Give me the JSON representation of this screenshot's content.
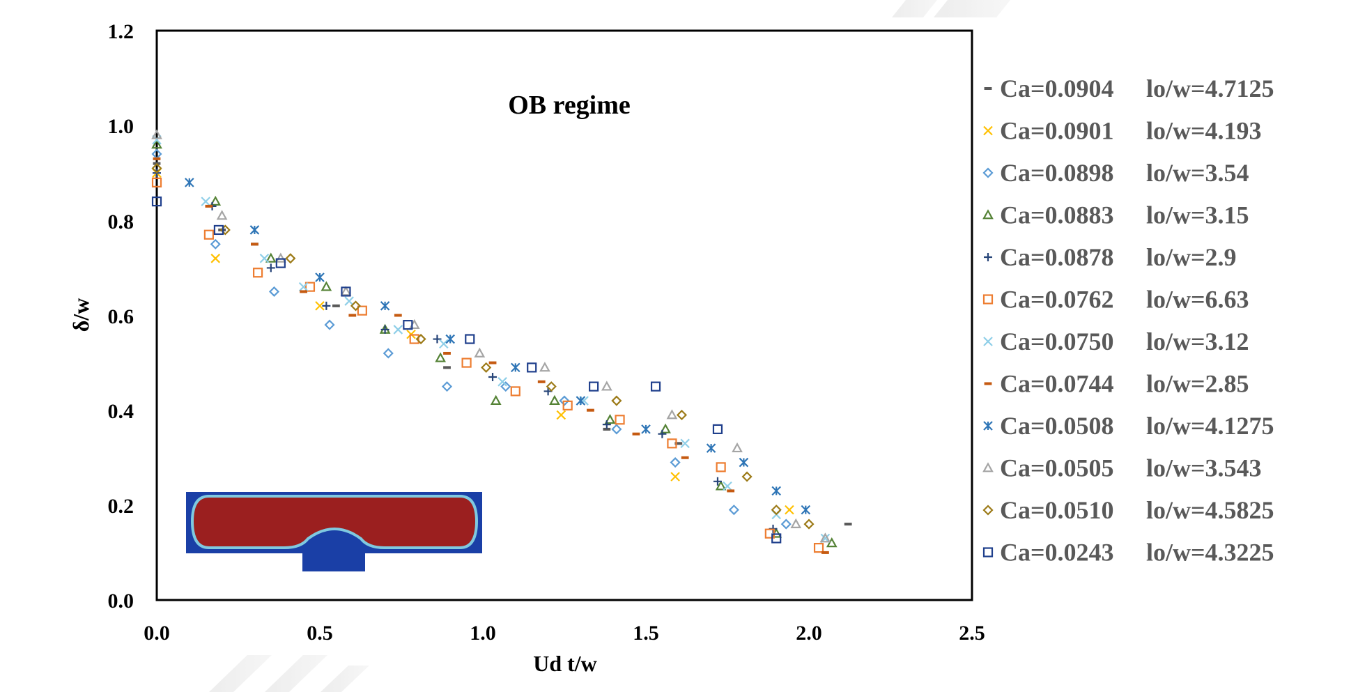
{
  "chart_data": {
    "type": "scatter",
    "title": "",
    "annotation": "OB regime",
    "xlabel": "Ud t/w",
    "ylabel": "δ/w",
    "xlim": [
      0,
      2.5
    ],
    "ylim": [
      0,
      1.2
    ],
    "x_ticks": [
      "0.0",
      "0.5",
      "1.0",
      "1.5",
      "2.0",
      "2.5"
    ],
    "y_ticks": [
      "0.0",
      "0.2",
      "0.4",
      "0.6",
      "0.8",
      "1.0",
      "1.2"
    ],
    "grid": false,
    "legend_position": "right",
    "inset": "droplet-simulation-image",
    "series": [
      {
        "ca": "Ca=0.0904",
        "lo": "lo/w=4.7125",
        "marker": "dash",
        "color": "#595959",
        "points": [
          [
            0.0,
            0.92
          ],
          [
            0.2,
            0.78
          ],
          [
            0.3,
            0.75
          ],
          [
            0.55,
            0.62
          ],
          [
            0.89,
            0.49
          ],
          [
            1.38,
            0.36
          ],
          [
            1.6,
            0.33
          ],
          [
            2.12,
            0.16
          ]
        ]
      },
      {
        "ca": "Ca=0.0901",
        "lo": "lo/w=4.193",
        "marker": "x",
        "color": "#FFC000",
        "points": [
          [
            0.0,
            0.9
          ],
          [
            0.18,
            0.72
          ],
          [
            0.5,
            0.62
          ],
          [
            0.78,
            0.56
          ],
          [
            1.24,
            0.39
          ],
          [
            1.59,
            0.26
          ],
          [
            1.94,
            0.19
          ]
        ]
      },
      {
        "ca": "Ca=0.0898",
        "lo": "lo/w=3.54",
        "marker": "diamond",
        "color": "#5B9BD5",
        "points": [
          [
            0.0,
            0.94
          ],
          [
            0.18,
            0.75
          ],
          [
            0.36,
            0.65
          ],
          [
            0.53,
            0.58
          ],
          [
            0.71,
            0.52
          ],
          [
            0.89,
            0.45
          ],
          [
            1.07,
            0.45
          ],
          [
            1.25,
            0.42
          ],
          [
            1.41,
            0.36
          ],
          [
            1.59,
            0.29
          ],
          [
            1.77,
            0.19
          ],
          [
            1.93,
            0.16
          ]
        ]
      },
      {
        "ca": "Ca=0.0883",
        "lo": "lo/w=3.15",
        "marker": "triangle",
        "color": "#548235",
        "points": [
          [
            0.0,
            0.96
          ],
          [
            0.18,
            0.84
          ],
          [
            0.35,
            0.72
          ],
          [
            0.52,
            0.66
          ],
          [
            0.7,
            0.57
          ],
          [
            0.87,
            0.51
          ],
          [
            1.04,
            0.42
          ],
          [
            1.22,
            0.42
          ],
          [
            1.39,
            0.38
          ],
          [
            1.56,
            0.36
          ],
          [
            1.73,
            0.24
          ],
          [
            1.9,
            0.14
          ],
          [
            2.07,
            0.12
          ]
        ]
      },
      {
        "ca": "Ca=0.0878",
        "lo": "lo/w=2.9",
        "marker": "plus",
        "color": "#264478",
        "points": [
          [
            0.0,
            0.9
          ],
          [
            0.17,
            0.83
          ],
          [
            0.35,
            0.7
          ],
          [
            0.52,
            0.62
          ],
          [
            0.7,
            0.57
          ],
          [
            0.86,
            0.55
          ],
          [
            1.03,
            0.47
          ],
          [
            1.2,
            0.44
          ],
          [
            1.38,
            0.37
          ],
          [
            1.55,
            0.35
          ],
          [
            1.72,
            0.25
          ],
          [
            1.89,
            0.15
          ]
        ]
      },
      {
        "ca": "Ca=0.0762",
        "lo": "lo/w=6.63",
        "marker": "square",
        "color": "#ED7D31",
        "points": [
          [
            0.0,
            0.88
          ],
          [
            0.16,
            0.77
          ],
          [
            0.31,
            0.69
          ],
          [
            0.47,
            0.66
          ],
          [
            0.63,
            0.61
          ],
          [
            0.79,
            0.55
          ],
          [
            0.95,
            0.5
          ],
          [
            1.1,
            0.44
          ],
          [
            1.26,
            0.41
          ],
          [
            1.42,
            0.38
          ],
          [
            1.58,
            0.33
          ],
          [
            1.73,
            0.28
          ],
          [
            1.88,
            0.14
          ],
          [
            2.03,
            0.11
          ]
        ]
      },
      {
        "ca": "Ca=0.0750",
        "lo": "lo/w=3.12",
        "marker": "x",
        "color": "#8FCFE8",
        "points": [
          [
            0.0,
            0.97
          ],
          [
            0.15,
            0.84
          ],
          [
            0.33,
            0.72
          ],
          [
            0.45,
            0.66
          ],
          [
            0.59,
            0.63
          ],
          [
            0.74,
            0.57
          ],
          [
            0.88,
            0.54
          ],
          [
            1.06,
            0.46
          ],
          [
            1.31,
            0.42
          ],
          [
            1.62,
            0.33
          ],
          [
            1.75,
            0.24
          ],
          [
            1.9,
            0.18
          ],
          [
            2.05,
            0.13
          ]
        ]
      },
      {
        "ca": "Ca=0.0744",
        "lo": "lo/w=2.85",
        "marker": "dash",
        "color": "#C55A11",
        "points": [
          [
            0.0,
            0.93
          ],
          [
            0.16,
            0.83
          ],
          [
            0.3,
            0.75
          ],
          [
            0.45,
            0.65
          ],
          [
            0.6,
            0.6
          ],
          [
            0.74,
            0.6
          ],
          [
            0.89,
            0.52
          ],
          [
            1.03,
            0.5
          ],
          [
            1.18,
            0.46
          ],
          [
            1.33,
            0.4
          ],
          [
            1.47,
            0.35
          ],
          [
            1.62,
            0.3
          ],
          [
            1.76,
            0.23
          ],
          [
            2.05,
            0.1
          ]
        ]
      },
      {
        "ca": "Ca=0.0508",
        "lo": "lo/w=4.1275",
        "marker": "asterisk",
        "color": "#2E75B6",
        "points": [
          [
            0.1,
            0.88
          ],
          [
            0.3,
            0.78
          ],
          [
            0.5,
            0.68
          ],
          [
            0.7,
            0.62
          ],
          [
            0.9,
            0.55
          ],
          [
            1.1,
            0.49
          ],
          [
            1.3,
            0.42
          ],
          [
            1.5,
            0.36
          ],
          [
            1.7,
            0.32
          ],
          [
            1.8,
            0.29
          ],
          [
            1.9,
            0.23
          ],
          [
            1.99,
            0.19
          ]
        ]
      },
      {
        "ca": "Ca=0.0505",
        "lo": "lo/w=3.543",
        "marker": "triangle",
        "color": "#A5A5A5",
        "points": [
          [
            0.0,
            0.98
          ],
          [
            0.2,
            0.81
          ],
          [
            0.38,
            0.72
          ],
          [
            0.58,
            0.65
          ],
          [
            0.79,
            0.58
          ],
          [
            0.99,
            0.52
          ],
          [
            1.19,
            0.49
          ],
          [
            1.38,
            0.45
          ],
          [
            1.58,
            0.39
          ],
          [
            1.78,
            0.32
          ],
          [
            1.96,
            0.16
          ],
          [
            2.05,
            0.13
          ]
        ]
      },
      {
        "ca": "Ca=0.0510",
        "lo": "lo/w=4.5825",
        "marker": "diamond",
        "color": "#9C7A17",
        "points": [
          [
            0.0,
            0.91
          ],
          [
            0.21,
            0.78
          ],
          [
            0.41,
            0.72
          ],
          [
            0.61,
            0.62
          ],
          [
            0.81,
            0.55
          ],
          [
            1.01,
            0.49
          ],
          [
            1.21,
            0.45
          ],
          [
            1.41,
            0.42
          ],
          [
            1.61,
            0.39
          ],
          [
            1.81,
            0.26
          ],
          [
            1.9,
            0.19
          ],
          [
            2.0,
            0.16
          ]
        ]
      },
      {
        "ca": "Ca=0.0243",
        "lo": "lo/w=4.3225",
        "marker": "square",
        "color": "#1F3F8C",
        "points": [
          [
            0.0,
            0.84
          ],
          [
            0.19,
            0.78
          ],
          [
            0.38,
            0.71
          ],
          [
            0.58,
            0.65
          ],
          [
            0.77,
            0.58
          ],
          [
            0.96,
            0.55
          ],
          [
            1.15,
            0.49
          ],
          [
            1.34,
            0.45
          ],
          [
            1.53,
            0.45
          ],
          [
            1.72,
            0.36
          ],
          [
            1.9,
            0.13
          ]
        ]
      }
    ]
  }
}
